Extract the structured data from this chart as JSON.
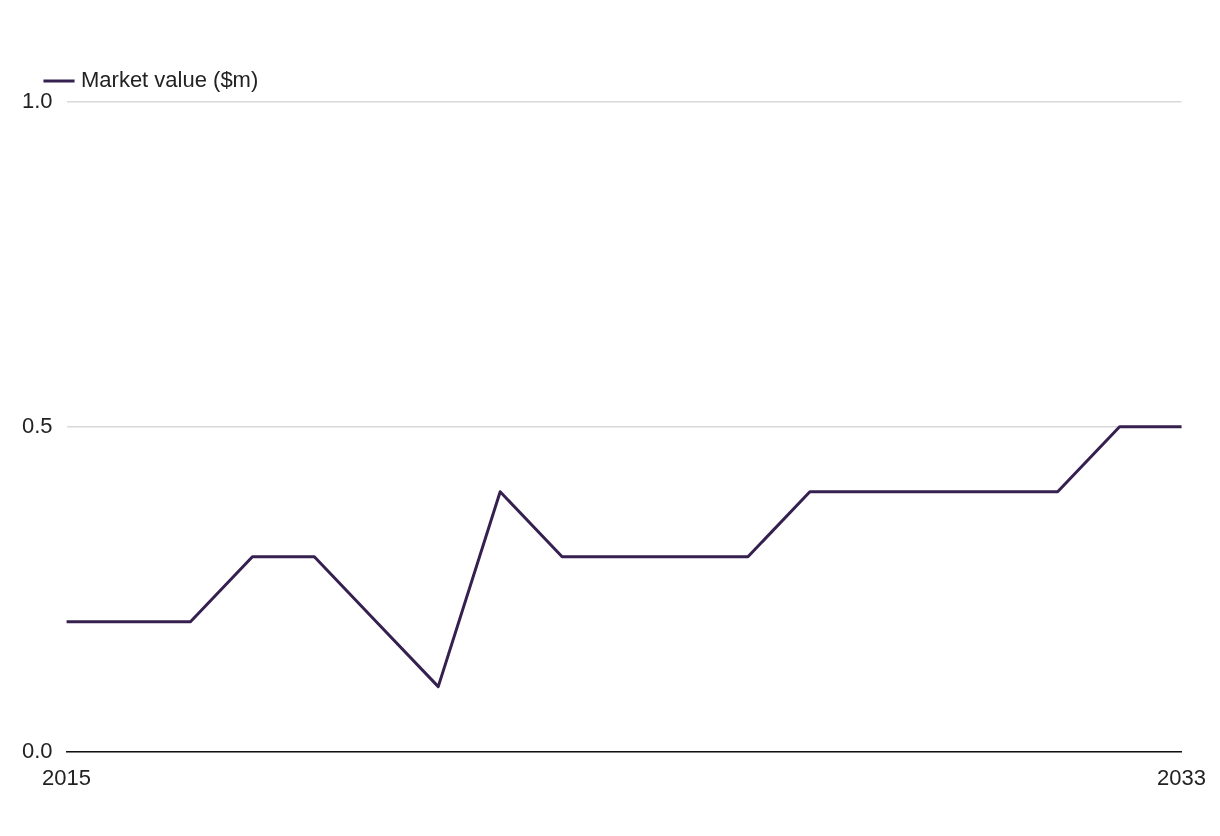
{
  "chart_data": {
    "type": "line",
    "x": [
      2015,
      2016,
      2017,
      2018,
      2019,
      2020,
      2021,
      2022,
      2023,
      2024,
      2025,
      2026,
      2027,
      2028,
      2029,
      2030,
      2031,
      2032,
      2033
    ],
    "series": [
      {
        "name": "Market value ($m)",
        "color": "#35204f",
        "values": [
          0.2,
          0.2,
          0.2,
          0.3,
          0.3,
          0.2,
          0.1,
          0.4,
          0.3,
          0.3,
          0.3,
          0.3,
          0.4,
          0.4,
          0.4,
          0.4,
          0.4,
          0.5,
          0.5
        ]
      }
    ],
    "xlim": [
      2015,
      2033
    ],
    "xticks": [
      2015,
      2033
    ],
    "ylim": [
      0,
      1
    ],
    "yticks": [
      {
        "value": 0,
        "label": "0.0"
      },
      {
        "value": 0.5,
        "label": "0.5"
      },
      {
        "value": 1,
        "label": "1.0"
      }
    ],
    "grid": "y",
    "legend": "top left",
    "marker": "none",
    "line_style": "solid"
  }
}
